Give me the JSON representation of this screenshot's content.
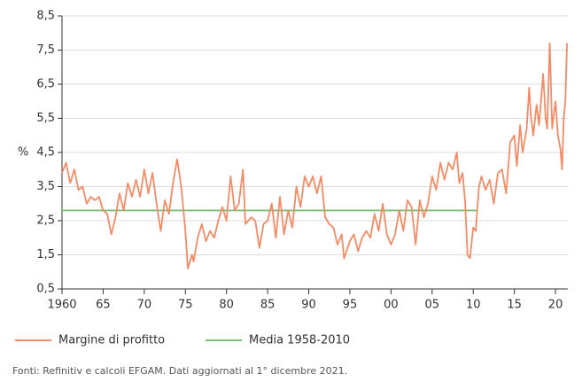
{
  "chart_data": {
    "type": "line",
    "ylabel": "%",
    "source": "Fonti: Refinitiv e calcoli EFGAM. Dati aggiornati al 1° dicembre 2021.",
    "xlim": [
      1960,
      2021.5
    ],
    "xticks": [
      1960,
      {
        "value": 1965,
        "label": "65"
      },
      {
        "value": 1970,
        "label": "70"
      },
      {
        "value": 1975,
        "label": "75"
      },
      {
        "value": 1980,
        "label": "80"
      },
      {
        "value": 1985,
        "label": "85"
      },
      {
        "value": 1990,
        "label": "90"
      },
      {
        "value": 1995,
        "label": "95"
      },
      {
        "value": 2000,
        "label": "00"
      },
      {
        "value": 2005,
        "label": "05"
      },
      {
        "value": 2010,
        "label": "10"
      },
      {
        "value": 2015,
        "label": "15"
      },
      {
        "value": 2020,
        "label": "20"
      }
    ],
    "ylim": [
      0.5,
      8.5
    ],
    "yticks": [
      {
        "value": 0.5,
        "label": "0,5"
      },
      {
        "value": 1.5,
        "label": "1,5"
      },
      {
        "value": 2.5,
        "label": "2,5"
      },
      {
        "value": 3.5,
        "label": "3,5"
      },
      {
        "value": 4.5,
        "label": "4,5"
      },
      {
        "value": 5.5,
        "label": "5,5"
      },
      {
        "value": 6.5,
        "label": "6,5"
      },
      {
        "value": 7.5,
        "label": "7,5"
      },
      {
        "value": 8.5,
        "label": "8,5"
      }
    ],
    "grid": true,
    "series": [
      {
        "name": "Margine di profitto",
        "color": "#f28c67",
        "x": [
          1960,
          1960.5,
          1961,
          1961.5,
          1962,
          1962.5,
          1963,
          1963.5,
          1964,
          1964.5,
          1965,
          1965.5,
          1966,
          1966.5,
          1967,
          1967.5,
          1968,
          1968.5,
          1969,
          1969.5,
          1970,
          1970.5,
          1971,
          1971.5,
          1972,
          1972.5,
          1973,
          1973.5,
          1974,
          1974.5,
          1975,
          1975.3,
          1975.8,
          1976,
          1976.5,
          1977,
          1977.5,
          1978,
          1978.5,
          1979,
          1979.5,
          1980,
          1980.5,
          1981,
          1981.5,
          1982,
          1982.3,
          1983,
          1983.5,
          1984,
          1984.5,
          1985,
          1985.5,
          1986,
          1986.5,
          1987,
          1987.5,
          1988,
          1988.5,
          1989,
          1989.5,
          1990,
          1990.5,
          1991,
          1991.5,
          1992,
          1992.5,
          1993,
          1993.5,
          1994,
          1994.3,
          1995,
          1995.5,
          1996,
          1996.5,
          1997,
          1997.5,
          1998,
          1998.5,
          1999,
          1999.5,
          2000,
          2000.5,
          2001,
          2001.5,
          2002,
          2002.5,
          2003,
          2003.5,
          2004,
          2004.5,
          2005,
          2005.5,
          2006,
          2006.5,
          2007,
          2007.5,
          2008,
          2008.3,
          2008.7,
          2009,
          2009.3,
          2009.6,
          2010,
          2010.3,
          2010.7,
          2011,
          2011.5,
          2012,
          2012.5,
          2013,
          2013.5,
          2014,
          2014.5,
          2015,
          2015.3,
          2015.7,
          2016,
          2016.5,
          2016.8,
          2017,
          2017.3,
          2017.7,
          2018,
          2018.5,
          2018.8,
          2019,
          2019.3,
          2019.6,
          2020,
          2020.3,
          2020.6,
          2020.8,
          2021,
          2021.2,
          2021.4
        ],
        "values": [
          3.9,
          4.2,
          3.6,
          4.0,
          3.4,
          3.5,
          3.0,
          3.2,
          3.1,
          3.2,
          2.8,
          2.7,
          2.1,
          2.6,
          3.3,
          2.8,
          3.6,
          3.2,
          3.7,
          3.2,
          4.0,
          3.3,
          3.9,
          3.0,
          2.2,
          3.1,
          2.7,
          3.6,
          4.3,
          3.5,
          2.2,
          1.1,
          1.5,
          1.3,
          2.0,
          2.4,
          1.9,
          2.2,
          2.0,
          2.5,
          2.9,
          2.5,
          3.8,
          2.8,
          3.0,
          4.0,
          2.4,
          2.6,
          2.5,
          1.7,
          2.4,
          2.5,
          3.0,
          2.0,
          3.2,
          2.1,
          2.8,
          2.3,
          3.5,
          2.9,
          3.8,
          3.5,
          3.8,
          3.3,
          3.8,
          2.6,
          2.4,
          2.3,
          1.8,
          2.1,
          1.4,
          1.9,
          2.1,
          1.6,
          2.0,
          2.2,
          2.0,
          2.7,
          2.2,
          3.0,
          2.1,
          1.8,
          2.1,
          2.8,
          2.2,
          3.1,
          2.9,
          1.8,
          3.1,
          2.6,
          3.0,
          3.8,
          3.4,
          4.2,
          3.7,
          4.2,
          4.0,
          4.5,
          3.6,
          3.9,
          3.1,
          1.5,
          1.4,
          2.3,
          2.2,
          3.5,
          3.8,
          3.4,
          3.7,
          3.0,
          3.9,
          4.0,
          3.3,
          4.8,
          5.0,
          4.1,
          5.3,
          4.5,
          5.2,
          6.4,
          5.6,
          5.0,
          5.9,
          5.3,
          6.8,
          5.5,
          5.2,
          7.7,
          5.2,
          6.0,
          5.0,
          4.6,
          4.0,
          5.5,
          6.0,
          7.7
        ]
      },
      {
        "name": "Media 1958-2010",
        "color": "#7dbf78",
        "x": [
          1960,
          2010.5
        ],
        "values": [
          2.8,
          2.8
        ]
      }
    ]
  }
}
